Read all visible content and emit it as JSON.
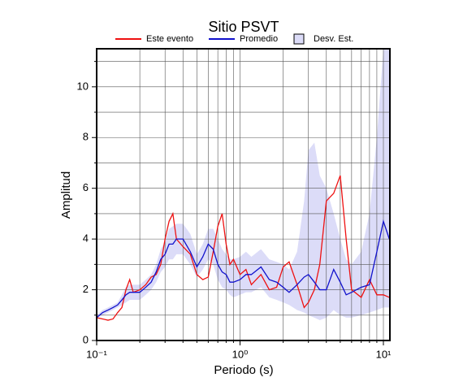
{
  "chart_data": {
    "type": "line",
    "title": "Sitio PSVT",
    "xlabel": "Periodo (s)",
    "ylabel": "Amplitud",
    "xscale": "log",
    "xlim": [
      0.1,
      11.1
    ],
    "ylim": [
      0,
      11.5
    ],
    "xticks": [
      {
        "value": 0.1,
        "label": "10⁻¹"
      },
      {
        "value": 1,
        "label": "10⁰"
      },
      {
        "value": 10,
        "label": "10¹"
      }
    ],
    "xminor_ticks": [
      0.2,
      0.3,
      0.4,
      0.5,
      0.6,
      0.7,
      0.8,
      0.9,
      2,
      3,
      4,
      5,
      6,
      7,
      8,
      9
    ],
    "yticks": [
      0,
      2,
      4,
      6,
      8,
      10
    ],
    "yminor_ticks": [
      1,
      3,
      5,
      7,
      9,
      11
    ],
    "grid": true,
    "x": [
      0.1,
      0.11,
      0.12,
      0.13,
      0.14,
      0.15,
      0.16,
      0.17,
      0.18,
      0.2,
      0.22,
      0.24,
      0.26,
      0.28,
      0.3,
      0.32,
      0.34,
      0.36,
      0.4,
      0.45,
      0.5,
      0.55,
      0.6,
      0.65,
      0.7,
      0.75,
      0.8,
      0.85,
      0.9,
      1,
      1.1,
      1.2,
      1.4,
      1.6,
      1.8,
      2,
      2.2,
      2.5,
      2.8,
      3,
      3.3,
      3.6,
      4,
      4.5,
      5,
      5.5,
      6,
      7,
      8,
      9,
      10,
      11
    ],
    "band": {
      "name": "Desv. Est.",
      "color": "#dcdcf8",
      "upper": [
        1,
        1.2,
        1.3,
        1.4,
        1.5,
        1.8,
        2.1,
        2.2,
        2.2,
        2.2,
        2.4,
        2.6,
        3.0,
        3.6,
        3.9,
        4.4,
        4.5,
        4.6,
        4.6,
        4.2,
        3.4,
        3.8,
        4.4,
        4.4,
        4.0,
        3.6,
        3.4,
        3.2,
        3.2,
        3.3,
        3.5,
        3.3,
        3.6,
        3.2,
        3.1,
        3.0,
        2.8,
        3.5,
        5.5,
        7.5,
        7.8,
        6.5,
        6.0,
        5.0,
        4.0,
        3.2,
        3.0,
        3.5,
        5.0,
        8.0,
        11.5,
        11.5
      ],
      "lower": [
        0.9,
        1,
        1.1,
        1.2,
        1.3,
        1.4,
        1.5,
        1.6,
        1.6,
        1.6,
        1.8,
        2.0,
        2.3,
        2.7,
        2.9,
        3.2,
        3.2,
        3.4,
        3.4,
        3.0,
        2.5,
        2.8,
        3.2,
        3.0,
        2.4,
        2.1,
        2.0,
        1.8,
        1.7,
        1.8,
        1.9,
        1.9,
        2.1,
        1.7,
        1.6,
        1.5,
        1.4,
        1.2,
        1.1,
        1.0,
        0.9,
        0.8,
        0.9,
        1.2,
        1.0,
        0.9,
        0.9,
        1.0,
        1.1,
        1.2,
        1.3,
        1.3
      ]
    },
    "series": [
      {
        "name": "Este evento",
        "color": "#ee1111",
        "values": [
          0.9,
          0.85,
          0.8,
          0.85,
          1.1,
          1.3,
          2.0,
          2.4,
          1.9,
          2.0,
          2.2,
          2.5,
          2.6,
          3.0,
          4.0,
          4.7,
          5.0,
          4.0,
          3.7,
          3.4,
          2.6,
          2.4,
          2.5,
          3.5,
          4.5,
          5.0,
          3.8,
          3.0,
          3.2,
          2.6,
          2.8,
          2.2,
          2.6,
          2.0,
          2.1,
          2.9,
          3.1,
          2.2,
          1.3,
          1.5,
          2.0,
          3.0,
          5.5,
          5.8,
          6.5,
          4.0,
          2.0,
          1.7,
          2.4,
          1.8,
          1.8,
          1.7
        ]
      },
      {
        "name": "Promedio",
        "color": "#1111cc",
        "values": [
          0.9,
          1.1,
          1.2,
          1.3,
          1.4,
          1.6,
          1.8,
          1.9,
          1.9,
          1.9,
          2.1,
          2.3,
          2.7,
          3.2,
          3.4,
          3.8,
          3.8,
          4.0,
          4.0,
          3.5,
          2.9,
          3.3,
          3.8,
          3.6,
          3.0,
          2.7,
          2.6,
          2.3,
          2.3,
          2.4,
          2.6,
          2.6,
          2.9,
          2.4,
          2.3,
          2.1,
          1.9,
          2.2,
          2.5,
          2.6,
          2.3,
          2.0,
          2.0,
          2.8,
          2.3,
          1.8,
          1.9,
          2.1,
          2.2,
          3.5,
          4.7,
          4.0
        ]
      }
    ]
  }
}
